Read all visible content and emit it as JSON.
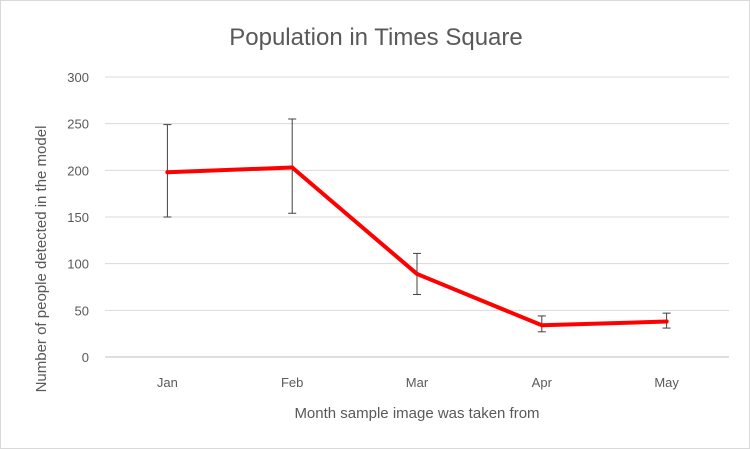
{
  "chart_data": {
    "type": "line",
    "title": "Population in Times Square",
    "xlabel": "Month sample image was taken from",
    "ylabel": "Number  of people detected  in the model",
    "categories": [
      "Jan",
      "Feb",
      "Mar",
      "Apr",
      "May"
    ],
    "series": [
      {
        "values": [
          198,
          203,
          89,
          34,
          38
        ],
        "error_low": [
          150,
          154,
          67,
          27,
          31
        ],
        "error_high": [
          249,
          255,
          111,
          44,
          47
        ],
        "color": "#ff0000"
      }
    ],
    "ylim": [
      0,
      300
    ],
    "yticks": [
      0,
      50,
      100,
      150,
      200,
      250,
      300
    ],
    "grid": true,
    "legend": "none"
  }
}
